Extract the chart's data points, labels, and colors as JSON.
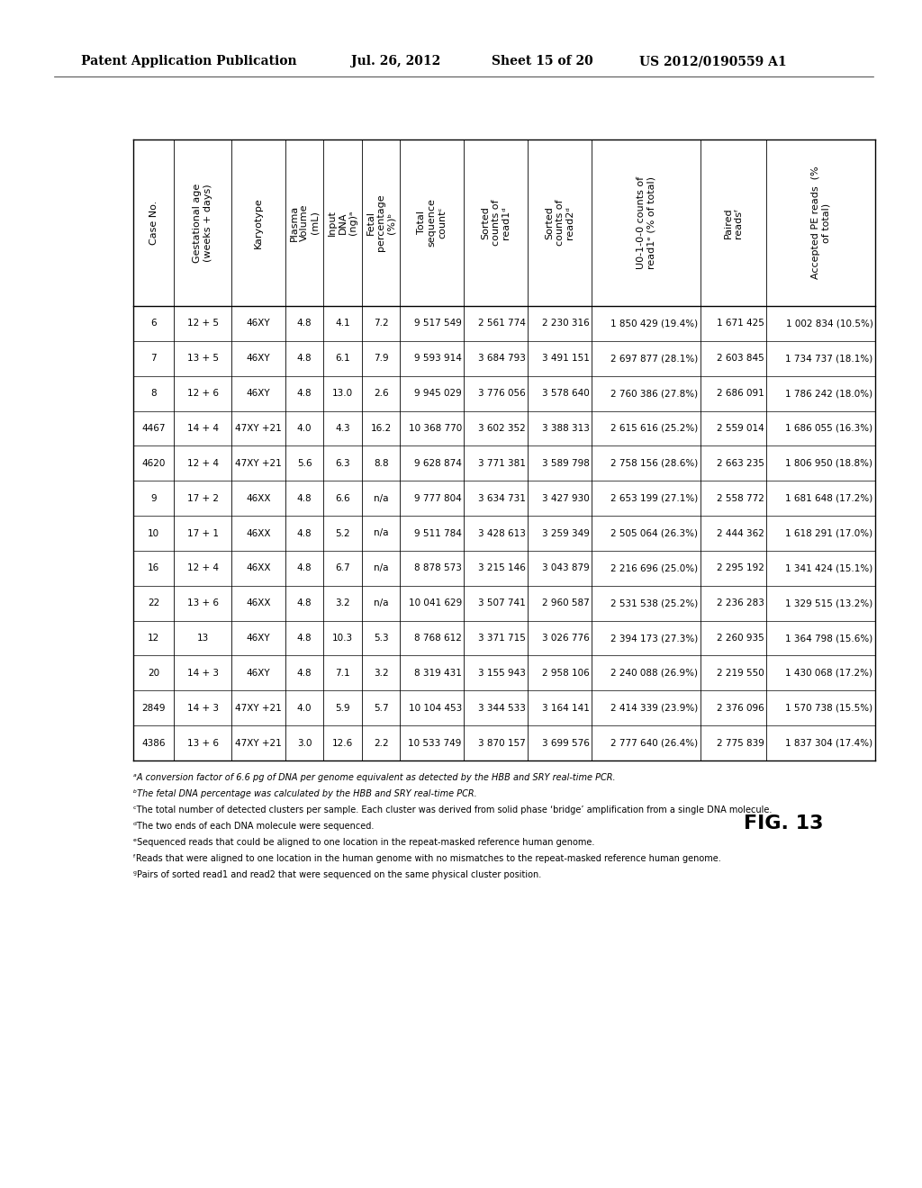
{
  "header_line1": "Patent Application Publication",
  "header_date": "Jul. 26, 2012",
  "header_sheet": "Sheet 15 of 20",
  "header_patent": "US 2012/0190559 A1",
  "fig_label": "FIG. 13",
  "col_headers_rotated": [
    "Case No.",
    "Gestational age\n(weeks + days)",
    "Karyotype",
    "Plasma\nVolume\n(mL)",
    "Input\nDNA\n(ng)ᵃ",
    "Fetal\npercentage\n(%)ᵇ",
    "Total\nsequence\ncountᶜ",
    "Sorted\ncounts of\nread1ᵈ",
    "Sorted\ncounts of\nread2ᵈ",
    "U0-1-0-0 counts of\nread1ᵉ (% of total)",
    "Paired\nreadsᶠ",
    "Accepted PE reads  (%\nof total)"
  ],
  "rows": [
    [
      "6",
      "12 + 5",
      "46XY",
      "4.8",
      "4.1",
      "7.2",
      "9 517 549",
      "2 561 774",
      "2 230 316",
      "1 850 429 (19.4%)",
      "1 671 425",
      "1 002 834 (10.5%)"
    ],
    [
      "7",
      "13 + 5",
      "46XY",
      "4.8",
      "6.1",
      "7.9",
      "9 593 914",
      "3 684 793",
      "3 491 151",
      "2 697 877 (28.1%)",
      "2 603 845",
      "1 734 737 (18.1%)"
    ],
    [
      "8",
      "12 + 6",
      "46XY",
      "4.8",
      "13.0",
      "2.6",
      "9 945 029",
      "3 776 056",
      "3 578 640",
      "2 760 386 (27.8%)",
      "2 686 091",
      "1 786 242 (18.0%)"
    ],
    [
      "4467",
      "14 + 4",
      "47XY +21",
      "4.0",
      "4.3",
      "16.2",
      "10 368 770",
      "3 602 352",
      "3 388 313",
      "2 615 616 (25.2%)",
      "2 559 014",
      "1 686 055 (16.3%)"
    ],
    [
      "4620",
      "12 + 4",
      "47XY +21",
      "5.6",
      "6.3",
      "8.8",
      "9 628 874",
      "3 771 381",
      "3 589 798",
      "2 758 156 (28.6%)",
      "2 663 235",
      "1 806 950 (18.8%)"
    ],
    [
      "9",
      "17 + 2",
      "46XX",
      "4.8",
      "6.6",
      "n/a",
      "9 777 804",
      "3 634 731",
      "3 427 930",
      "2 653 199 (27.1%)",
      "2 558 772",
      "1 681 648 (17.2%)"
    ],
    [
      "10",
      "17 + 1",
      "46XX",
      "4.8",
      "5.2",
      "n/a",
      "9 511 784",
      "3 428 613",
      "3 259 349",
      "2 505 064 (26.3%)",
      "2 444 362",
      "1 618 291 (17.0%)"
    ],
    [
      "16",
      "12 + 4",
      "46XX",
      "4.8",
      "6.7",
      "n/a",
      "8 878 573",
      "3 215 146",
      "3 043 879",
      "2 216 696 (25.0%)",
      "2 295 192",
      "1 341 424 (15.1%)"
    ],
    [
      "22",
      "13 + 6",
      "46XX",
      "4.8",
      "3.2",
      "n/a",
      "10 041 629",
      "3 507 741",
      "2 960 587",
      "2 531 538 (25.2%)",
      "2 236 283",
      "1 329 515 (13.2%)"
    ],
    [
      "12",
      "13",
      "46XY",
      "4.8",
      "10.3",
      "5.3",
      "8 768 612",
      "3 371 715",
      "3 026 776",
      "2 394 173 (27.3%)",
      "2 260 935",
      "1 364 798 (15.6%)"
    ],
    [
      "20",
      "14 + 3",
      "46XY",
      "4.8",
      "7.1",
      "3.2",
      "8 319 431",
      "3 155 943",
      "2 958 106",
      "2 240 088 (26.9%)",
      "2 219 550",
      "1 430 068 (17.2%)"
    ],
    [
      "2849",
      "14 + 3",
      "47XY +21",
      "4.0",
      "5.9",
      "5.7",
      "10 104 453",
      "3 344 533",
      "3 164 141",
      "2 414 339 (23.9%)",
      "2 376 096",
      "1 570 738 (15.5%)"
    ],
    [
      "4386",
      "13 + 6",
      "47XY +21",
      "3.0",
      "12.6",
      "2.2",
      "10 533 749",
      "3 870 157",
      "3 699 576",
      "2 777 640 (26.4%)",
      "2 775 839",
      "1 837 304 (17.4%)"
    ]
  ],
  "footnotes": [
    "ᵃA conversion factor of 6.6 pg of DNA per genome equivalent as detected by the HBB and SRY real-time PCR.",
    "ᵇThe fetal DNA percentage was calculated by the HBB and SRY real-time PCR.",
    "ᶜThe total number of detected clusters per sample. Each cluster was derived from solid phase ‘bridge’ amplification from a single DNA molecule.",
    "ᵈThe two ends of each DNA molecule were sequenced.",
    "ᵉSequenced reads that could be aligned to one location in the repeat-masked reference human genome.",
    "ᶠReads that were aligned to one location in the human genome with no mismatches to the repeat-masked reference human genome.",
    "ᶢPairs of sorted read1 and read2 that were sequenced on the same physical cluster position."
  ],
  "bg_color": "#ffffff",
  "text_color": "#000000",
  "header_fontsize": 9.5,
  "data_fontsize": 7.5,
  "footnote_fontsize": 7.0
}
